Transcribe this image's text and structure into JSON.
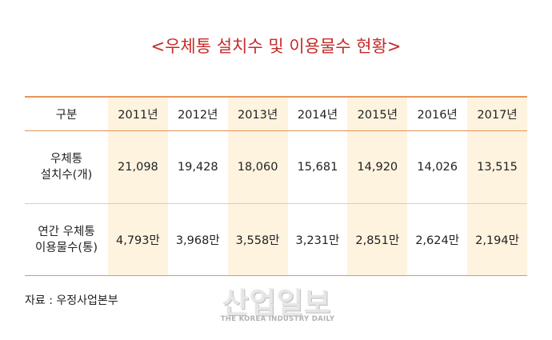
{
  "title": "<우체통 설치수 및 이용물수 현황>",
  "table": {
    "header_label": "구분",
    "years": [
      "2011년",
      "2012년",
      "2013년",
      "2014년",
      "2015년",
      "2016년",
      "2017년"
    ],
    "rows": [
      {
        "label_lines": [
          "우체통",
          "설치수(개)"
        ],
        "values": [
          "21,098",
          "19,428",
          "18,060",
          "15,681",
          "14,920",
          "14,026",
          "13,515"
        ]
      },
      {
        "label_lines": [
          "연간 우체통",
          "이용물수(통)"
        ],
        "values": [
          "4,793만",
          "3,968만",
          "3,558만",
          "3,231만",
          "2,851만",
          "2,624만",
          "2,194만"
        ]
      }
    ]
  },
  "source": "자료 : 우정사업본부",
  "watermark": {
    "main": "산업일보",
    "sub": "THE KOREA INDUSTRY DAILY"
  },
  "colors": {
    "title": "#c62b2b",
    "border": "#e8935a",
    "shade": "#fdf3df"
  }
}
